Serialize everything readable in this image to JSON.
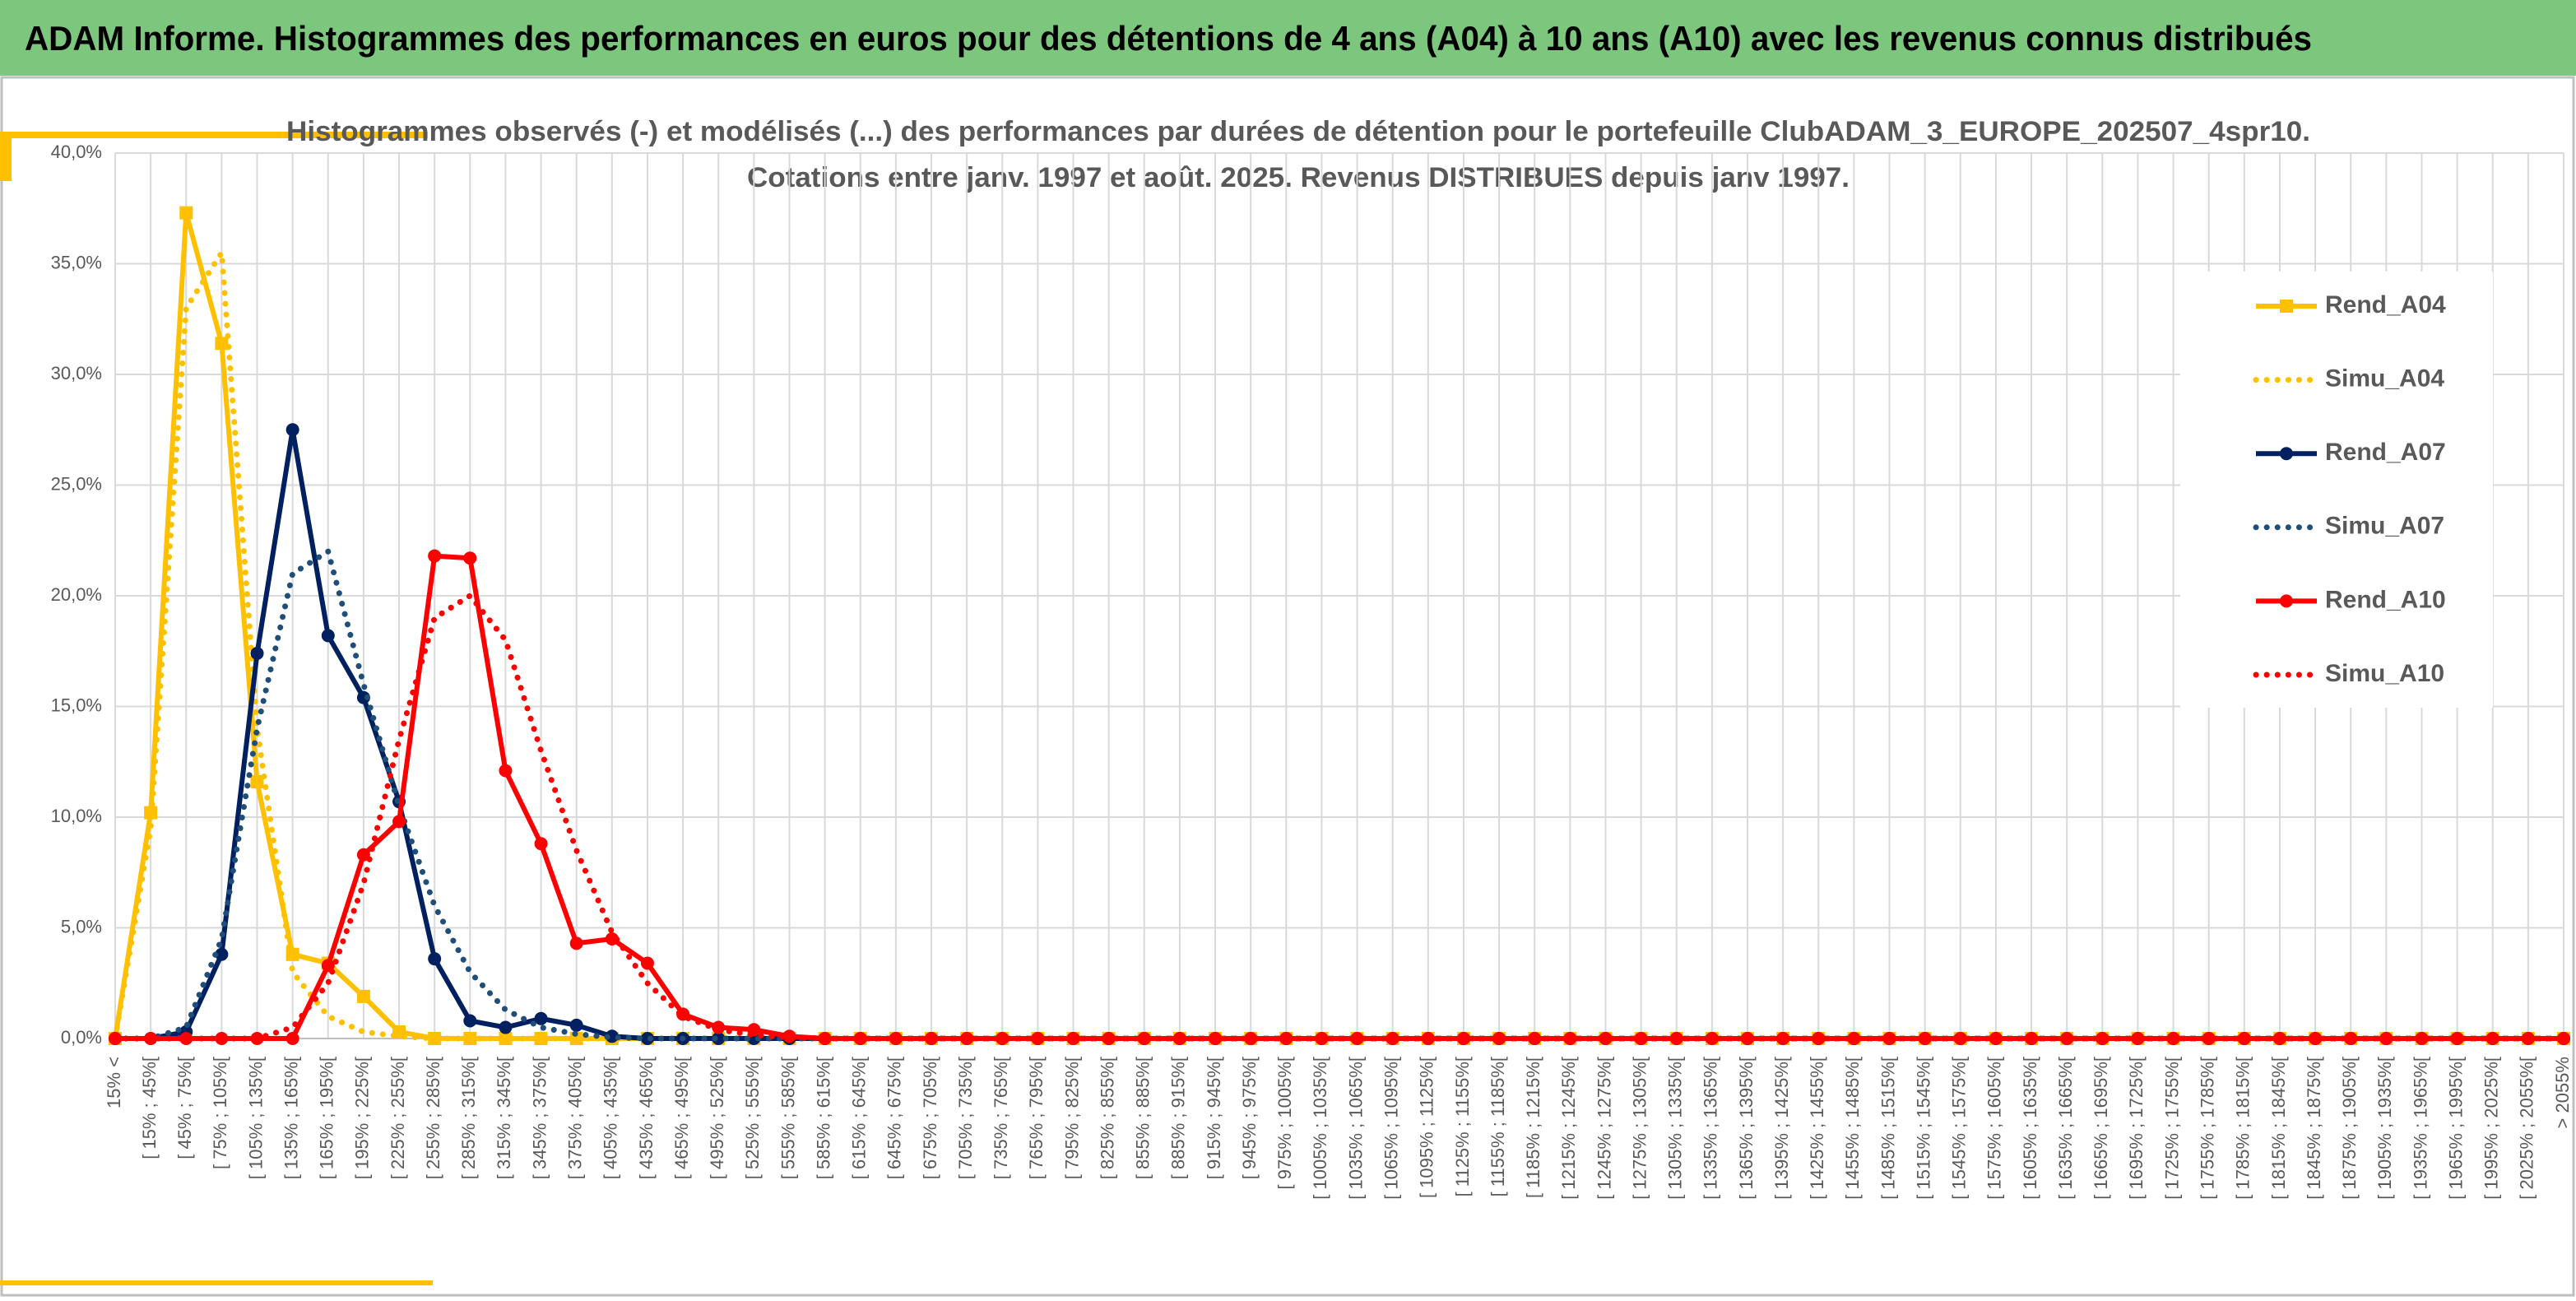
{
  "header": {
    "title": "ADAM Informe. Histogrammes des performances en euros pour des détentions de 4 ans (A04) à 10 ans (A10) avec les revenus connus distribués"
  },
  "chart_data": {
    "type": "line",
    "title": "Histogrammes observés (-) et modélisés (...) des performances par durées de détention pour le portefeuille ClubADAM_3_EUROPE_202507_4spr10.",
    "subtitle": "Cotations entre janv. 1997 et août. 2025. Revenus DISTRIBUES depuis janv 1997.",
    "categories": [
      "15% <",
      "[ 15% ; 45%[",
      "[ 45% ; 75%[",
      "[ 75% ; 105%[",
      "[ 105% ; 135%[",
      "[ 135% ; 165%[",
      "[ 165% ; 195%[",
      "[ 195% ; 225%[",
      "[ 225% ; 255%[",
      "[ 255% ; 285%[",
      "[ 285% ; 315%[",
      "[ 315% ; 345%[",
      "[ 345% ; 375%[",
      "[ 375% ; 405%[",
      "[ 405% ; 435%[",
      "[ 435% ; 465%[",
      "[ 465% ; 495%[",
      "[ 495% ; 525%[",
      "[ 525% ; 555%[",
      "[ 555% ; 585%[",
      "[ 585% ; 615%[",
      "[ 615% ; 645%[",
      "[ 645% ; 675%[",
      "[ 675% ; 705%[",
      "[ 705% ; 735%[",
      "[ 735% ; 765%[",
      "[ 765% ; 795%[",
      "[ 795% ; 825%[",
      "[ 825% ; 855%[",
      "[ 855% ; 885%[",
      "[ 885% ; 915%[",
      "[ 915% ; 945%[",
      "[ 945% ; 975%[",
      "[ 975% ; 1005%[",
      "[ 1005% ; 1035%[",
      "[ 1035% ; 1065%[",
      "[ 1065% ; 1095%[",
      "[ 1095% ; 1125%[",
      "[ 1125% ; 1155%[",
      "[ 1155% ; 1185%[",
      "[ 1185% ; 1215%[",
      "[ 1215% ; 1245%[",
      "[ 1245% ; 1275%[",
      "[ 1275% ; 1305%[",
      "[ 1305% ; 1335%[",
      "[ 1335% ; 1365%[",
      "[ 1365% ; 1395%[",
      "[ 1395% ; 1425%[",
      "[ 1425% ; 1455%[",
      "[ 1455% ; 1485%[",
      "[ 1485% ; 1515%[",
      "[ 1515% ; 1545%[",
      "[ 1545% ; 1575%[",
      "[ 1575% ; 1605%[",
      "[ 1605% ; 1635%[",
      "[ 1635% ; 1665%[",
      "[ 1665% ; 1695%[",
      "[ 1695% ; 1725%[",
      "[ 1725% ; 1755%[",
      "[ 1755% ; 1785%[",
      "[ 1785% ; 1815%[",
      "[ 1815% ; 1845%[",
      "[ 1845% ; 1875%[",
      "[ 1875% ; 1905%[",
      "[ 1905% ; 1935%[",
      "[ 1935% ; 1965%[",
      "[ 1965% ; 1995%[",
      "[ 1995% ; 2025%[",
      "[ 2025% ; 2055%[",
      "> 2055%"
    ],
    "series": [
      {
        "name": "Rend_A04",
        "color": "#ffc000",
        "dotted": false,
        "marker": "square",
        "values": [
          0,
          10.2,
          37.3,
          31.4,
          11.6,
          3.8,
          3.4,
          1.9,
          0.3,
          0,
          0,
          0,
          0,
          0,
          0,
          0,
          0,
          0,
          0,
          0,
          0,
          0,
          0,
          0,
          0,
          0,
          0,
          0,
          0,
          0,
          0,
          0,
          0,
          0,
          0,
          0,
          0,
          0,
          0,
          0,
          0,
          0,
          0,
          0,
          0,
          0,
          0,
          0,
          0,
          0,
          0,
          0,
          0,
          0,
          0,
          0,
          0,
          0,
          0,
          0,
          0,
          0,
          0,
          0,
          0,
          0,
          0,
          0,
          0,
          0
        ]
      },
      {
        "name": "Simu_A04",
        "color": "#ffc000",
        "dotted": true,
        "marker": null,
        "values": [
          0,
          9.5,
          33,
          35.5,
          14,
          3,
          1,
          0.3,
          0.1,
          0,
          0,
          0,
          0,
          0,
          0,
          0,
          0,
          0,
          0,
          0,
          0,
          0,
          0,
          0,
          0,
          0,
          0,
          0,
          0,
          0,
          0,
          0,
          0,
          0,
          0,
          0,
          0,
          0,
          0,
          0,
          0,
          0,
          0,
          0,
          0,
          0,
          0,
          0,
          0,
          0,
          0,
          0,
          0,
          0,
          0,
          0,
          0,
          0,
          0,
          0,
          0,
          0,
          0,
          0,
          0,
          0,
          0,
          0,
          0,
          0
        ]
      },
      {
        "name": "Rend_A07",
        "color": "#002060",
        "dotted": false,
        "marker": "circle",
        "values": [
          0,
          0,
          0.3,
          3.8,
          17.4,
          27.5,
          18.2,
          15.4,
          10.7,
          3.6,
          0.8,
          0.5,
          0.9,
          0.6,
          0.1,
          0,
          0,
          0,
          0,
          0,
          0,
          0,
          0,
          0,
          0,
          0,
          0,
          0,
          0,
          0,
          0,
          0,
          0,
          0,
          0,
          0,
          0,
          0,
          0,
          0,
          0,
          0,
          0,
          0,
          0,
          0,
          0,
          0,
          0,
          0,
          0,
          0,
          0,
          0,
          0,
          0,
          0,
          0,
          0,
          0,
          0,
          0,
          0,
          0,
          0,
          0,
          0,
          0,
          0,
          0
        ]
      },
      {
        "name": "Simu_A07",
        "color": "#1f4e79",
        "dotted": true,
        "marker": null,
        "values": [
          0,
          0,
          0.5,
          4.5,
          14,
          21,
          22,
          16,
          10.5,
          6,
          3,
          1.3,
          0.5,
          0.2,
          0.05,
          0,
          0,
          0,
          0,
          0,
          0,
          0,
          0,
          0,
          0,
          0,
          0,
          0,
          0,
          0,
          0,
          0,
          0,
          0,
          0,
          0,
          0,
          0,
          0,
          0,
          0,
          0,
          0,
          0,
          0,
          0,
          0,
          0,
          0,
          0,
          0,
          0,
          0,
          0,
          0,
          0,
          0,
          0,
          0,
          0,
          0,
          0,
          0,
          0,
          0,
          0,
          0,
          0,
          0,
          0
        ]
      },
      {
        "name": "Rend_A10",
        "color": "#ff0000",
        "dotted": false,
        "marker": "circle",
        "values": [
          0,
          0,
          0,
          0,
          0,
          0,
          3.3,
          8.3,
          9.8,
          21.8,
          21.7,
          12.1,
          8.8,
          4.3,
          4.5,
          3.4,
          1.1,
          0.5,
          0.4,
          0.1,
          0,
          0,
          0,
          0,
          0,
          0,
          0,
          0,
          0,
          0,
          0,
          0,
          0,
          0,
          0,
          0,
          0,
          0,
          0,
          0,
          0,
          0,
          0,
          0,
          0,
          0,
          0,
          0,
          0,
          0,
          0,
          0,
          0,
          0,
          0,
          0,
          0,
          0,
          0,
          0,
          0,
          0,
          0,
          0,
          0,
          0,
          0,
          0,
          0,
          0
        ]
      },
      {
        "name": "Simu_A10",
        "color": "#ff0000",
        "dotted": true,
        "marker": null,
        "values": [
          0,
          0,
          0,
          0,
          0,
          0.5,
          2.5,
          7,
          13.5,
          19,
          20,
          18,
          13,
          8.5,
          4.8,
          2.5,
          1,
          0.4,
          0.15,
          0.05,
          0,
          0,
          0,
          0,
          0,
          0,
          0,
          0,
          0,
          0,
          0,
          0,
          0,
          0,
          0,
          0,
          0,
          0,
          0,
          0,
          0,
          0,
          0,
          0,
          0,
          0,
          0,
          0,
          0,
          0,
          0,
          0,
          0,
          0,
          0,
          0,
          0,
          0,
          0,
          0,
          0,
          0,
          0,
          0,
          0,
          0,
          0,
          0,
          0,
          0
        ]
      }
    ],
    "ylim": [
      0,
      40
    ],
    "yticks": [
      {
        "value": 0,
        "label": "0,0%"
      },
      {
        "value": 5,
        "label": "5,0%"
      },
      {
        "value": 10,
        "label": "10,0%"
      },
      {
        "value": 15,
        "label": "15,0%"
      },
      {
        "value": 20,
        "label": "20,0%"
      },
      {
        "value": 25,
        "label": "25,0%"
      },
      {
        "value": 30,
        "label": "30,0%"
      },
      {
        "value": 35,
        "label": "35,0%"
      },
      {
        "value": 40,
        "label": "40,0%"
      }
    ],
    "grid": true,
    "legend": "right"
  }
}
